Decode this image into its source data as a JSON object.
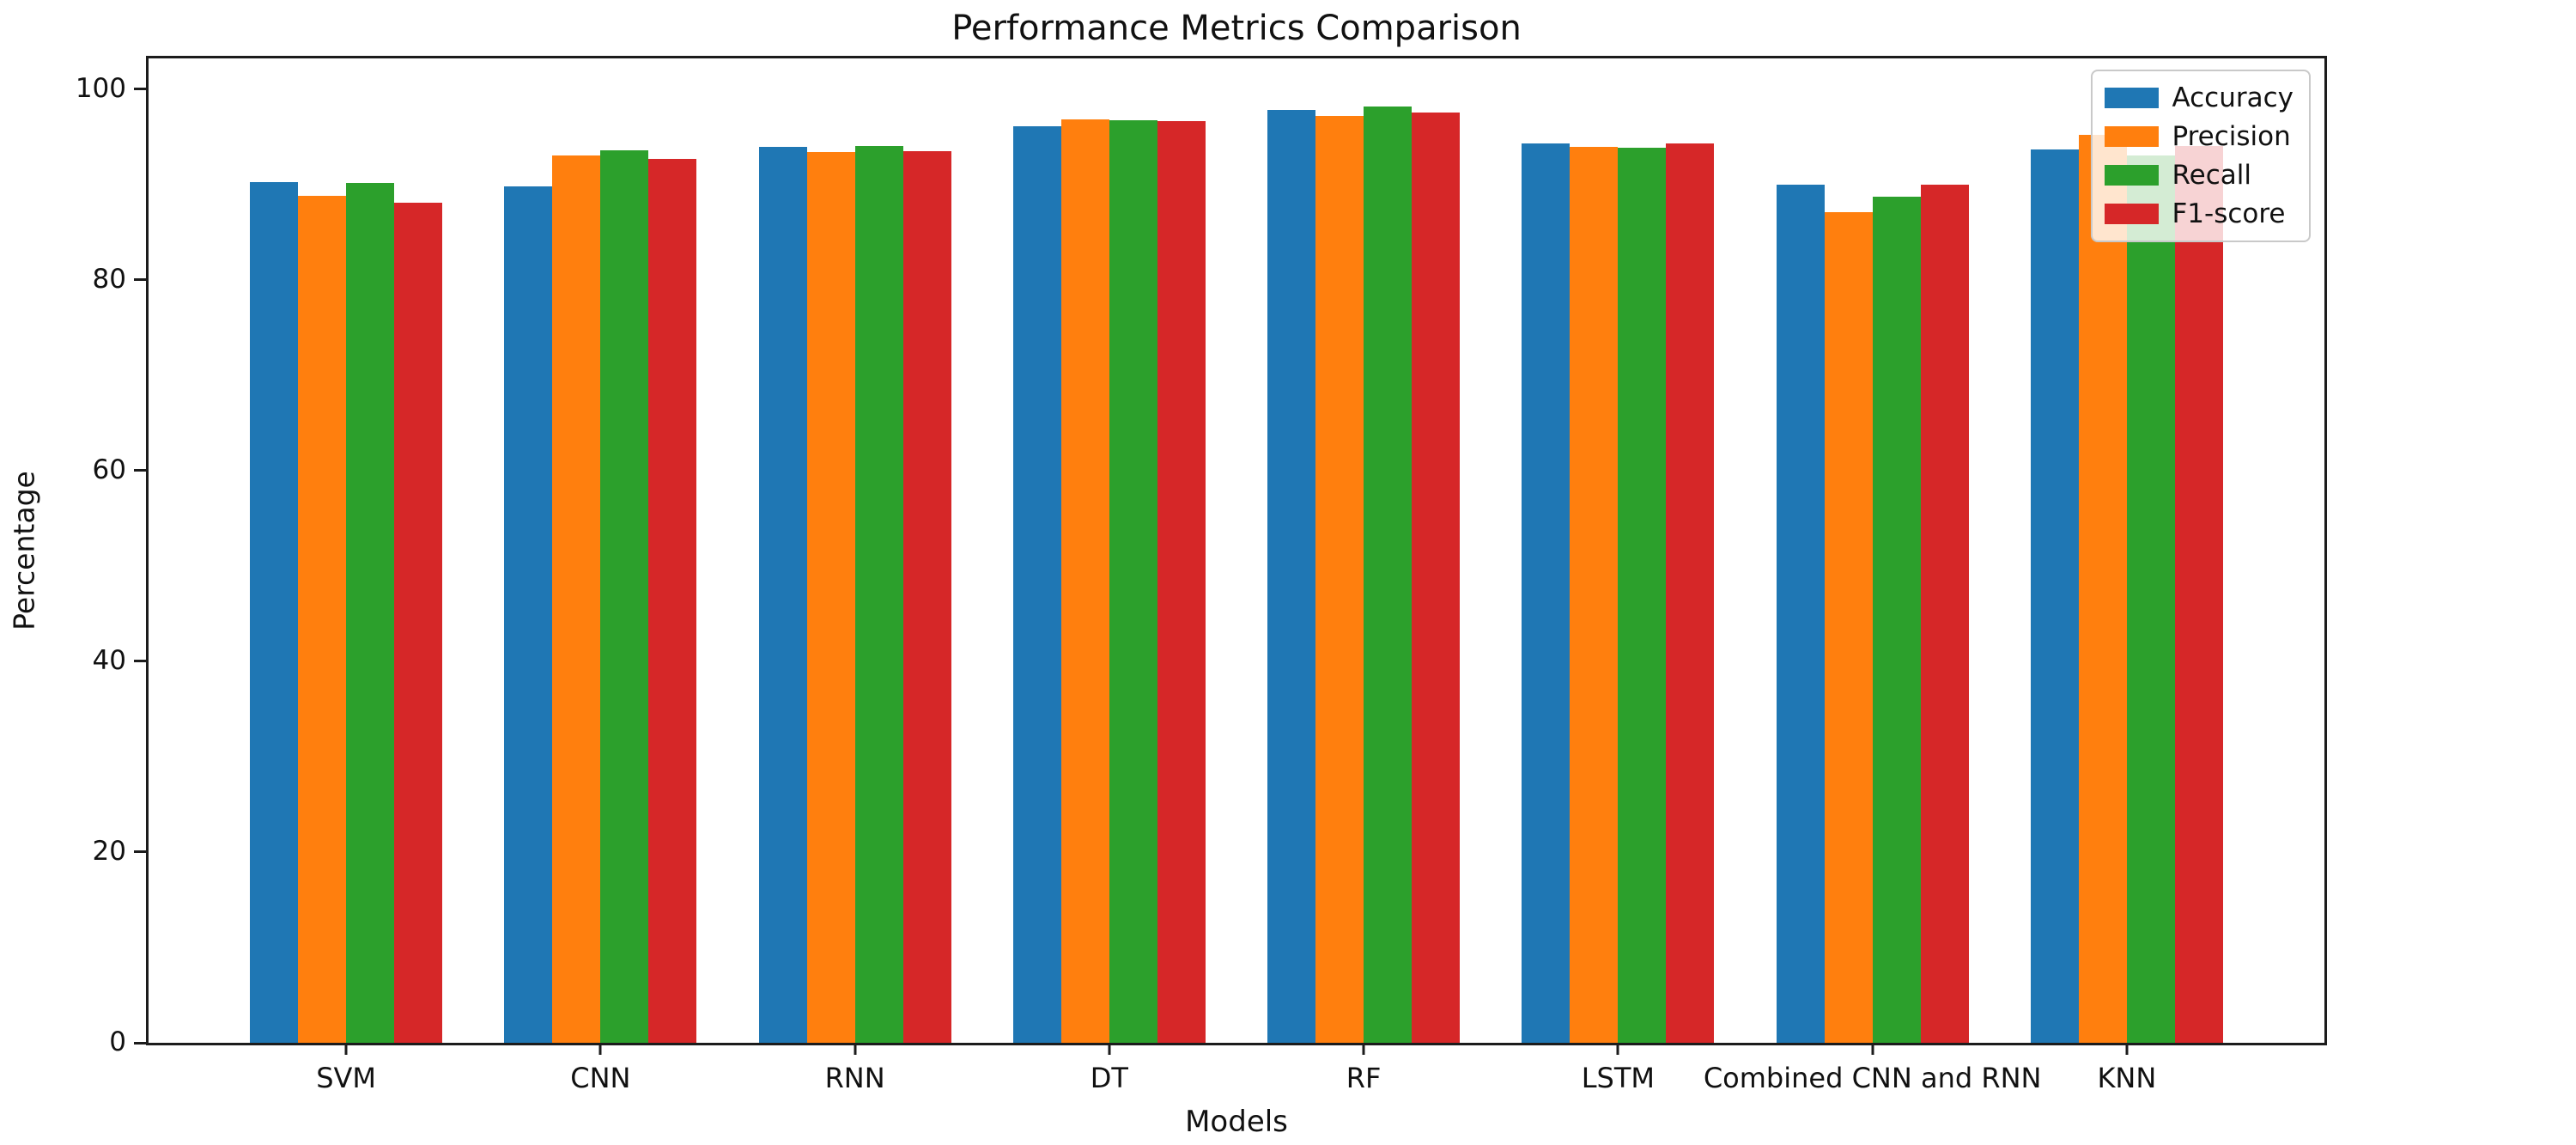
{
  "figure": {
    "title": "Performance Metrics Comparison",
    "xlabel": "Models",
    "ylabel": "Percentage"
  },
  "chart_data": {
    "type": "bar",
    "title": "Performance Metrics Comparison",
    "xlabel": "Models",
    "ylabel": "Percentage",
    "categories": [
      "SVM",
      "CNN",
      "RNN",
      "DT",
      "RF",
      "LSTM",
      "Combined CNN and RNN",
      "KNN"
    ],
    "series": [
      {
        "name": "Accuracy",
        "color": "#1f77b4",
        "values": [
          90.2,
          89.8,
          93.9,
          96.1,
          97.8,
          94.3,
          90.0,
          93.7
        ]
      },
      {
        "name": "Precision",
        "color": "#ff7f0e",
        "values": [
          88.8,
          93.0,
          93.4,
          96.8,
          97.2,
          93.9,
          87.1,
          95.2
        ]
      },
      {
        "name": "Recall",
        "color": "#2ca02c",
        "values": [
          90.1,
          93.6,
          94.0,
          96.7,
          98.2,
          93.8,
          88.7,
          93.0
        ]
      },
      {
        "name": "F1-score",
        "color": "#d62728",
        "values": [
          88.1,
          92.7,
          93.5,
          96.6,
          97.5,
          94.3,
          90.0,
          94.0
        ]
      }
    ],
    "ylim": [
      0,
      103.2
    ],
    "yticks": [
      0,
      20,
      40,
      60,
      80,
      100
    ],
    "grid": false,
    "legend_position": "upper right"
  }
}
